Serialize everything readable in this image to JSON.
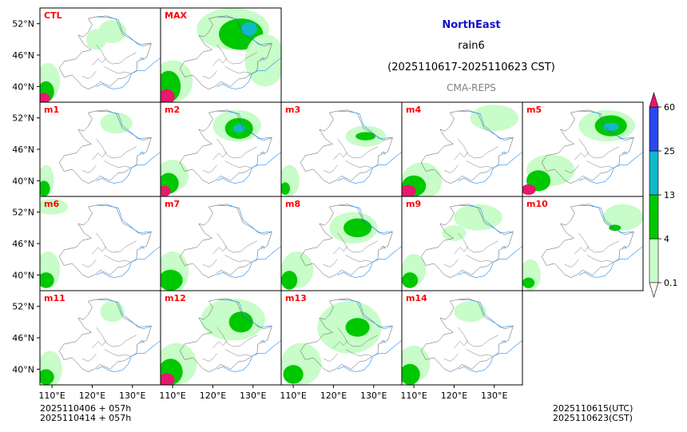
{
  "header": {
    "region": "NorthEast",
    "variable": "rain6",
    "period": "(2025110617-2025110623 CST)",
    "source": "CMA-REPS"
  },
  "footer": {
    "init_lines": [
      "2025110406  +  057h",
      "2025110414  +  057h"
    ],
    "valid_lines": [
      "2025110615(UTC)",
      "2025110623(CST)"
    ]
  },
  "colors": {
    "label": "#ff0000",
    "title": "#1212c8",
    "source": "#808080",
    "coast": "#1e90ff",
    "border": "#555555",
    "levels": [
      "#c8fcc8",
      "#00c800",
      "#10b8c8",
      "#2848f0",
      "#e8186e"
    ]
  },
  "chart_data": {
    "type": "heatmap",
    "title": "NorthEast rain6",
    "lon_range": [
      107,
      137
    ],
    "lat_range": [
      37,
      55
    ],
    "xticks": [
      {
        "v": 110,
        "t": "110°E"
      },
      {
        "v": 120,
        "t": "120°E"
      },
      {
        "v": 130,
        "t": "130°E"
      }
    ],
    "yticks": [
      {
        "v": 52,
        "t": "52°N"
      },
      {
        "v": 46,
        "t": "46°N"
      },
      {
        "v": 40,
        "t": "40°N"
      }
    ],
    "colorbar": {
      "levels": [
        0.1,
        4,
        13,
        25,
        60
      ],
      "labels": [
        "0.1",
        "4",
        "13",
        "25",
        "60"
      ],
      "colors": [
        "#c8fcc8",
        "#00c800",
        "#10b8c8",
        "#2848f0"
      ],
      "extend_max_color": "#e8186e",
      "extend_min_color": "#ffffff"
    },
    "panels": [
      {
        "label": "CTL",
        "blobs": [
          {
            "lon": 125,
            "lat": 50.5,
            "rx": 3.5,
            "ry": 2.2,
            "lvl": 0
          },
          {
            "lon": 121,
            "lat": 49,
            "rx": 2.5,
            "ry": 2,
            "lvl": 0
          },
          {
            "lon": 109,
            "lat": 41,
            "rx": 3,
            "ry": 3.5,
            "lvl": 0
          },
          {
            "lon": 108.5,
            "lat": 39,
            "rx": 2,
            "ry": 2,
            "lvl": 1
          },
          {
            "lon": 108,
            "lat": 37.8,
            "rx": 1.5,
            "ry": 1,
            "lvl": 4
          }
        ]
      },
      {
        "label": "MAX",
        "blobs": [
          {
            "lon": 125,
            "lat": 51,
            "rx": 9,
            "ry": 4,
            "lvl": 0
          },
          {
            "lon": 127,
            "lat": 50,
            "rx": 5.5,
            "ry": 3,
            "lvl": 1
          },
          {
            "lon": 129,
            "lat": 51,
            "rx": 2,
            "ry": 1.3,
            "lvl": 2
          },
          {
            "lon": 133,
            "lat": 45,
            "rx": 5,
            "ry": 5,
            "lvl": 0
          },
          {
            "lon": 110,
            "lat": 41,
            "rx": 5,
            "ry": 4,
            "lvl": 0
          },
          {
            "lon": 109,
            "lat": 40,
            "rx": 3,
            "ry": 3,
            "lvl": 1
          },
          {
            "lon": 108.5,
            "lat": 38,
            "rx": 2,
            "ry": 1.5,
            "lvl": 4
          }
        ]
      },
      {
        "label": "m1",
        "blobs": [
          {
            "lon": 126,
            "lat": 51,
            "rx": 4,
            "ry": 2,
            "lvl": 0
          },
          {
            "lon": 108.5,
            "lat": 40,
            "rx": 2,
            "ry": 3,
            "lvl": 0
          },
          {
            "lon": 108,
            "lat": 38.5,
            "rx": 1.5,
            "ry": 1.5,
            "lvl": 1
          }
        ]
      },
      {
        "label": "m2",
        "blobs": [
          {
            "lon": 126,
            "lat": 50.5,
            "rx": 6,
            "ry": 3,
            "lvl": 0
          },
          {
            "lon": 126.5,
            "lat": 50,
            "rx": 3.5,
            "ry": 2,
            "lvl": 1
          },
          {
            "lon": 126.5,
            "lat": 50,
            "rx": 1.5,
            "ry": 0.8,
            "lvl": 2
          },
          {
            "lon": 110,
            "lat": 41,
            "rx": 4,
            "ry": 3,
            "lvl": 0
          },
          {
            "lon": 109,
            "lat": 39.5,
            "rx": 2.5,
            "ry": 2,
            "lvl": 1
          },
          {
            "lon": 108,
            "lat": 38,
            "rx": 1.5,
            "ry": 1,
            "lvl": 4
          }
        ]
      },
      {
        "label": "m3",
        "blobs": [
          {
            "lon": 128,
            "lat": 48.5,
            "rx": 5,
            "ry": 2,
            "lvl": 0
          },
          {
            "lon": 128,
            "lat": 48.5,
            "rx": 2.5,
            "ry": 0.8,
            "lvl": 1
          },
          {
            "lon": 109,
            "lat": 40,
            "rx": 2.5,
            "ry": 3,
            "lvl": 0
          },
          {
            "lon": 108,
            "lat": 38.5,
            "rx": 1.2,
            "ry": 1.2,
            "lvl": 1
          }
        ]
      },
      {
        "label": "m4",
        "blobs": [
          {
            "lon": 130,
            "lat": 52,
            "rx": 6,
            "ry": 2.5,
            "lvl": 0
          },
          {
            "lon": 112,
            "lat": 40,
            "rx": 5,
            "ry": 3.5,
            "lvl": 0
          },
          {
            "lon": 110,
            "lat": 39,
            "rx": 3,
            "ry": 2,
            "lvl": 1
          },
          {
            "lon": 108.5,
            "lat": 38,
            "rx": 2,
            "ry": 1.2,
            "lvl": 4
          }
        ]
      },
      {
        "label": "m5",
        "blobs": [
          {
            "lon": 128,
            "lat": 50.5,
            "rx": 7,
            "ry": 3,
            "lvl": 0
          },
          {
            "lon": 129,
            "lat": 50.5,
            "rx": 4,
            "ry": 2,
            "lvl": 1
          },
          {
            "lon": 129,
            "lat": 50.3,
            "rx": 2,
            "ry": 0.8,
            "lvl": 2
          },
          {
            "lon": 114,
            "lat": 42,
            "rx": 6,
            "ry": 3,
            "lvl": 0
          },
          {
            "lon": 111,
            "lat": 40,
            "rx": 3,
            "ry": 2,
            "lvl": 1
          },
          {
            "lon": 108.5,
            "lat": 38.3,
            "rx": 1.8,
            "ry": 1,
            "lvl": 4
          }
        ]
      },
      {
        "label": "m6",
        "blobs": [
          {
            "lon": 110,
            "lat": 53,
            "rx": 4,
            "ry": 1.5,
            "lvl": 0
          },
          {
            "lon": 109,
            "lat": 41,
            "rx": 3,
            "ry": 3.5,
            "lvl": 0
          },
          {
            "lon": 108.5,
            "lat": 39,
            "rx": 2,
            "ry": 1.5,
            "lvl": 1
          }
        ]
      },
      {
        "label": "m7",
        "blobs": [
          {
            "lon": 110,
            "lat": 40.5,
            "rx": 4,
            "ry": 4,
            "lvl": 0
          },
          {
            "lon": 109.5,
            "lat": 39,
            "rx": 3,
            "ry": 2,
            "lvl": 1
          }
        ]
      },
      {
        "label": "m8",
        "blobs": [
          {
            "lon": 125,
            "lat": 49,
            "rx": 6,
            "ry": 3,
            "lvl": 0
          },
          {
            "lon": 126,
            "lat": 49,
            "rx": 3.5,
            "ry": 1.8,
            "lvl": 1
          },
          {
            "lon": 111,
            "lat": 41,
            "rx": 4,
            "ry": 3.5,
            "lvl": 0
          },
          {
            "lon": 109,
            "lat": 39,
            "rx": 2,
            "ry": 1.8,
            "lvl": 1
          }
        ]
      },
      {
        "label": "m9",
        "blobs": [
          {
            "lon": 126,
            "lat": 51,
            "rx": 6,
            "ry": 2.5,
            "lvl": 0
          },
          {
            "lon": 120,
            "lat": 48,
            "rx": 3,
            "ry": 1.5,
            "lvl": 0
          },
          {
            "lon": 110,
            "lat": 41,
            "rx": 3,
            "ry": 3,
            "lvl": 0
          },
          {
            "lon": 109,
            "lat": 39,
            "rx": 2,
            "ry": 1.5,
            "lvl": 1
          }
        ]
      },
      {
        "label": "m10",
        "blobs": [
          {
            "lon": 132,
            "lat": 51,
            "rx": 5,
            "ry": 2.5,
            "lvl": 0
          },
          {
            "lon": 130,
            "lat": 49,
            "rx": 1.5,
            "ry": 0.6,
            "lvl": 1
          },
          {
            "lon": 109,
            "lat": 40,
            "rx": 2.5,
            "ry": 3,
            "lvl": 0
          },
          {
            "lon": 108.5,
            "lat": 38.5,
            "rx": 1.5,
            "ry": 1,
            "lvl": 1
          }
        ]
      },
      {
        "label": "m11",
        "blobs": [
          {
            "lon": 125,
            "lat": 51,
            "rx": 3,
            "ry": 2,
            "lvl": 0
          },
          {
            "lon": 109.5,
            "lat": 40,
            "rx": 3,
            "ry": 3.5,
            "lvl": 0
          },
          {
            "lon": 108.5,
            "lat": 38.5,
            "rx": 2,
            "ry": 1.5,
            "lvl": 1
          }
        ]
      },
      {
        "label": "m12",
        "blobs": [
          {
            "lon": 125,
            "lat": 49.5,
            "rx": 8,
            "ry": 4,
            "lvl": 0
          },
          {
            "lon": 127,
            "lat": 49,
            "rx": 3,
            "ry": 2,
            "lvl": 1
          },
          {
            "lon": 111,
            "lat": 41,
            "rx": 5,
            "ry": 4,
            "lvl": 0
          },
          {
            "lon": 109.5,
            "lat": 39.5,
            "rx": 3,
            "ry": 2.5,
            "lvl": 1
          },
          {
            "lon": 108.5,
            "lat": 38,
            "rx": 2,
            "ry": 1.2,
            "lvl": 4
          }
        ]
      },
      {
        "label": "m13",
        "blobs": [
          {
            "lon": 124,
            "lat": 48,
            "rx": 8,
            "ry": 5,
            "lvl": 0
          },
          {
            "lon": 126,
            "lat": 48,
            "rx": 3,
            "ry": 1.8,
            "lvl": 1
          },
          {
            "lon": 112,
            "lat": 41,
            "rx": 5,
            "ry": 4,
            "lvl": 0
          },
          {
            "lon": 110,
            "lat": 39,
            "rx": 2.5,
            "ry": 1.8,
            "lvl": 1
          }
        ]
      },
      {
        "label": "m14",
        "blobs": [
          {
            "lon": 124,
            "lat": 51,
            "rx": 4,
            "ry": 2,
            "lvl": 0
          },
          {
            "lon": 110,
            "lat": 41,
            "rx": 4,
            "ry": 3.5,
            "lvl": 0
          },
          {
            "lon": 109,
            "lat": 39,
            "rx": 2.5,
            "ry": 2,
            "lvl": 1
          }
        ]
      }
    ]
  }
}
